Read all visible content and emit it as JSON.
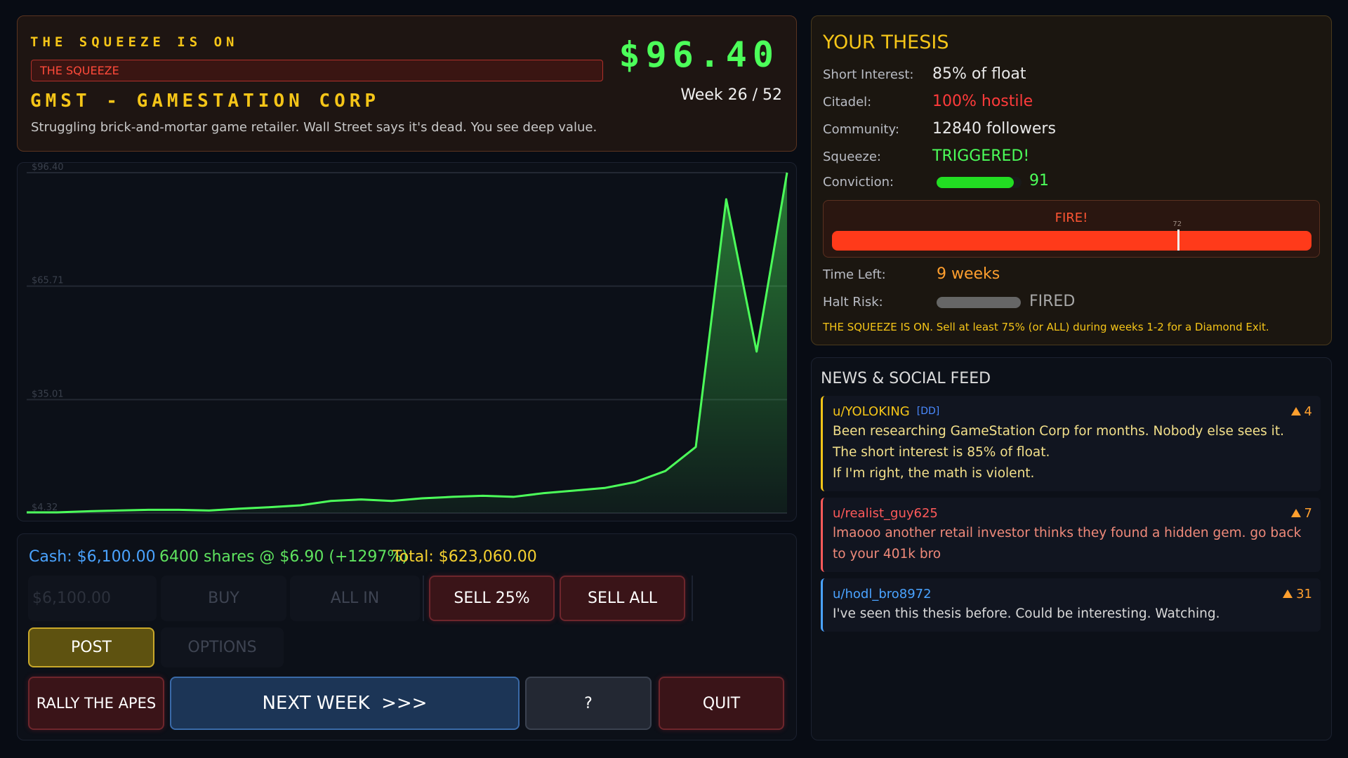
{
  "header": {
    "title": "THE SQUEEZE IS ON",
    "badge": "THE SQUEEZE",
    "ticker": "GMST - GAMESTATION CORP",
    "description": "Struggling brick-and-mortar game retailer. Wall Street says it's dead. You see deep value.",
    "price": "$96.40",
    "week": "Week 26 / 52"
  },
  "chart_data": {
    "type": "line",
    "values": [
      4.5,
      4.5,
      4.8,
      5.0,
      5.2,
      5.2,
      5.0,
      5.5,
      5.9,
      6.4,
      7.6,
      8.0,
      7.6,
      8.3,
      8.7,
      9.0,
      8.7,
      9.7,
      10.4,
      11.1,
      12.7,
      15.7,
      22.2,
      89.2,
      48.0,
      96.4
    ],
    "color": "#4cff5a",
    "ylim": [
      4.32,
      96.4
    ],
    "yticks": [
      {
        "value": 4.32,
        "label": "$4.32"
      },
      {
        "value": 35.01,
        "label": "$35.01"
      },
      {
        "value": 65.71,
        "label": "$65.71"
      },
      {
        "value": 96.4,
        "label": "$96.40"
      }
    ],
    "grid": true
  },
  "thesis": {
    "title": "YOUR THESIS",
    "rows": [
      {
        "label": "Short Interest:",
        "value": "85% of float",
        "color": "#e8e8e8"
      },
      {
        "label": "Citadel:",
        "value": "100% hostile",
        "color": "#ff3b3b"
      },
      {
        "label": "Community:",
        "value": "12840 followers",
        "color": "#e8e8e8"
      },
      {
        "label": "Squeeze:",
        "value": "TRIGGERED!",
        "color": "#4cff5a"
      }
    ],
    "conviction": {
      "label": "Conviction:",
      "value": 91,
      "max": 100
    },
    "fire": {
      "label": "FIRE!",
      "level": 100,
      "threshold": 72
    },
    "time_left": {
      "label": "Time Left:",
      "value": "9 weeks"
    },
    "halt_risk": {
      "label": "Halt Risk:",
      "value": "FIRED"
    },
    "note": "THE SQUEEZE IS ON. Sell at least 75% (or ALL) during weeks 1-2 for a Diamond Exit."
  },
  "feed": {
    "title": "NEWS & SOCIAL FEED",
    "posts": [
      {
        "user": "u/YOLOKING",
        "tag": "[DD]",
        "votes": 4,
        "color": "#f5c518",
        "paragraphs": [
          "Been researching GameStation Corp for months. Nobody else sees it. The short interest is 85% of float.",
          "If I'm right, the math is violent."
        ]
      },
      {
        "user": "u/realist_guy625",
        "votes": 7,
        "color": "#ff5a5a",
        "paragraphs": [
          "lmaooo another retail investor thinks they found a hidden gem. go back to your 401k bro"
        ]
      },
      {
        "user": "u/hodl_bro8972",
        "votes": 31,
        "color": "#4aa3ff",
        "paragraphs": [
          "I've seen this thesis before. Could be interesting. Watching."
        ]
      }
    ]
  },
  "portfolio": {
    "cash": "Cash: $6,100.00",
    "position": "6400 shares @ $6.90 (+1297%)",
    "total": "Total: $623,060.00",
    "amount": "$6,100.00"
  },
  "actions": {
    "buy": "BUY",
    "all_in": "ALL IN",
    "sell_25": "SELL 25%",
    "sell_all": "SELL ALL",
    "post": "POST",
    "options": "OPTIONS",
    "rally": "RALLY THE APES",
    "next_week": "NEXT WEEK  >>>",
    "help": "?",
    "quit": "QUIT"
  }
}
